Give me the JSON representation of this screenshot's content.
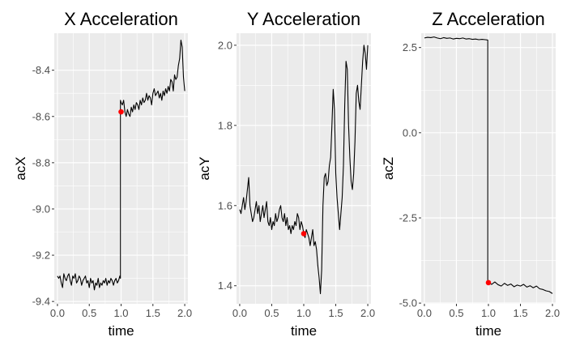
{
  "chart_data": [
    {
      "type": "line",
      "title": "X Acceleration",
      "xlabel": "time",
      "ylabel": "acX",
      "xlim": [
        -0.05,
        2.05
      ],
      "ylim": [
        -9.41,
        -8.24
      ],
      "xticks": [
        0.0,
        0.5,
        1.0,
        1.5,
        2.0
      ],
      "xtick_labels": [
        "0.0",
        "0.5",
        "1.0",
        "1.5",
        "2.0"
      ],
      "yticks": [
        -9.4,
        -9.2,
        -9.0,
        -8.8,
        -8.6,
        -8.4
      ],
      "ytick_labels": [
        "-9.4",
        "-9.2",
        "-9.0",
        "-8.8",
        "-8.6",
        "-8.4"
      ],
      "grid": true,
      "line_color": "#000000",
      "marker": {
        "x": 1.0,
        "y": -8.58,
        "color": "#ff0000"
      },
      "series": [
        {
          "x": [
            0.0,
            0.02,
            0.04,
            0.06,
            0.08,
            0.1,
            0.12,
            0.14,
            0.16,
            0.18,
            0.2,
            0.22,
            0.24,
            0.26,
            0.28,
            0.3,
            0.32,
            0.34,
            0.36,
            0.38,
            0.4,
            0.42,
            0.44,
            0.46,
            0.48,
            0.5,
            0.52,
            0.54,
            0.56,
            0.58,
            0.6,
            0.62,
            0.64,
            0.66,
            0.68,
            0.7,
            0.72,
            0.74,
            0.76,
            0.78,
            0.8,
            0.82,
            0.84,
            0.86,
            0.88,
            0.9,
            0.92,
            0.94,
            0.96,
            0.98,
            0.99,
            0.99,
            1.0,
            1.02,
            1.04,
            1.06,
            1.08,
            1.1,
            1.12,
            1.14,
            1.16,
            1.18,
            1.2,
            1.22,
            1.24,
            1.26,
            1.28,
            1.3,
            1.32,
            1.34,
            1.36,
            1.38,
            1.4,
            1.42,
            1.44,
            1.46,
            1.48,
            1.5,
            1.52,
            1.54,
            1.56,
            1.58,
            1.6,
            1.62,
            1.64,
            1.66,
            1.68,
            1.7,
            1.72,
            1.74,
            1.76,
            1.78,
            1.8,
            1.82,
            1.84,
            1.86,
            1.88,
            1.9,
            1.92,
            1.94,
            1.96,
            1.98,
            2.0
          ],
          "y": [
            -9.29,
            -9.3,
            -9.29,
            -9.32,
            -9.34,
            -9.28,
            -9.3,
            -9.31,
            -9.29,
            -9.28,
            -9.31,
            -9.33,
            -9.29,
            -9.3,
            -9.28,
            -9.32,
            -9.31,
            -9.29,
            -9.3,
            -9.33,
            -9.31,
            -9.3,
            -9.29,
            -9.32,
            -9.31,
            -9.34,
            -9.3,
            -9.32,
            -9.31,
            -9.35,
            -9.32,
            -9.33,
            -9.3,
            -9.34,
            -9.32,
            -9.33,
            -9.31,
            -9.32,
            -9.3,
            -9.33,
            -9.31,
            -9.32,
            -9.3,
            -9.31,
            -9.33,
            -9.31,
            -9.3,
            -9.32,
            -9.31,
            -9.29,
            -9.3,
            -8.53,
            -8.54,
            -8.55,
            -8.53,
            -8.58,
            -8.6,
            -8.57,
            -8.59,
            -8.6,
            -8.56,
            -8.58,
            -8.55,
            -8.57,
            -8.54,
            -8.55,
            -8.57,
            -8.53,
            -8.55,
            -8.52,
            -8.54,
            -8.53,
            -8.5,
            -8.53,
            -8.51,
            -8.52,
            -8.55,
            -8.5,
            -8.48,
            -8.51,
            -8.5,
            -8.49,
            -8.52,
            -8.5,
            -8.53,
            -8.49,
            -8.51,
            -8.48,
            -8.5,
            -8.47,
            -8.49,
            -8.44,
            -8.45,
            -8.49,
            -8.42,
            -8.44,
            -8.43,
            -8.38,
            -8.35,
            -8.27,
            -8.3,
            -8.43,
            -8.49
          ]
        }
      ]
    },
    {
      "type": "line",
      "title": "Y Acceleration",
      "xlabel": "time",
      "ylabel": "acY",
      "xlim": [
        -0.05,
        2.05
      ],
      "ylim": [
        1.355,
        2.03
      ],
      "xticks": [
        0.0,
        0.5,
        1.0,
        1.5,
        2.0
      ],
      "xtick_labels": [
        "0.0",
        "0.5",
        "1.0",
        "1.5",
        "2.0"
      ],
      "yticks": [
        1.4,
        1.6,
        1.8,
        2.0
      ],
      "ytick_labels": [
        "1.4",
        "1.6",
        "1.8",
        "2.0"
      ],
      "grid": true,
      "line_color": "#000000",
      "marker": {
        "x": 1.0,
        "y": 1.53,
        "color": "#ff0000"
      },
      "series": [
        {
          "x": [
            0.0,
            0.02,
            0.04,
            0.06,
            0.08,
            0.1,
            0.12,
            0.14,
            0.16,
            0.18,
            0.2,
            0.22,
            0.24,
            0.26,
            0.28,
            0.3,
            0.32,
            0.34,
            0.36,
            0.38,
            0.4,
            0.42,
            0.44,
            0.46,
            0.48,
            0.5,
            0.52,
            0.54,
            0.56,
            0.58,
            0.6,
            0.62,
            0.64,
            0.66,
            0.68,
            0.7,
            0.72,
            0.74,
            0.76,
            0.78,
            0.8,
            0.82,
            0.84,
            0.86,
            0.88,
            0.9,
            0.92,
            0.94,
            0.96,
            0.98,
            1.0,
            1.02,
            1.04,
            1.06,
            1.08,
            1.1,
            1.12,
            1.14,
            1.16,
            1.18,
            1.2,
            1.22,
            1.24,
            1.26,
            1.28,
            1.3,
            1.32,
            1.34,
            1.36,
            1.38,
            1.4,
            1.42,
            1.44,
            1.46,
            1.48,
            1.5,
            1.52,
            1.54,
            1.56,
            1.58,
            1.6,
            1.62,
            1.64,
            1.66,
            1.68,
            1.7,
            1.72,
            1.74,
            1.76,
            1.78,
            1.8,
            1.82,
            1.84,
            1.86,
            1.88,
            1.9,
            1.92,
            1.94,
            1.96,
            1.98,
            2.0
          ],
          "y": [
            1.59,
            1.58,
            1.6,
            1.62,
            1.59,
            1.61,
            1.64,
            1.67,
            1.6,
            1.58,
            1.56,
            1.57,
            1.59,
            1.61,
            1.58,
            1.6,
            1.56,
            1.58,
            1.6,
            1.57,
            1.59,
            1.61,
            1.56,
            1.55,
            1.57,
            1.54,
            1.56,
            1.55,
            1.58,
            1.56,
            1.57,
            1.59,
            1.6,
            1.57,
            1.56,
            1.58,
            1.55,
            1.57,
            1.54,
            1.55,
            1.53,
            1.55,
            1.54,
            1.56,
            1.55,
            1.58,
            1.57,
            1.54,
            1.56,
            1.55,
            1.53,
            1.52,
            1.54,
            1.53,
            1.52,
            1.5,
            1.52,
            1.54,
            1.5,
            1.51,
            1.49,
            1.45,
            1.42,
            1.38,
            1.44,
            1.6,
            1.67,
            1.68,
            1.65,
            1.66,
            1.7,
            1.72,
            1.8,
            1.89,
            1.84,
            1.68,
            1.62,
            1.58,
            1.54,
            1.58,
            1.62,
            1.7,
            1.85,
            1.96,
            1.94,
            1.8,
            1.72,
            1.66,
            1.64,
            1.68,
            1.76,
            1.88,
            1.9,
            1.86,
            1.84,
            1.9,
            1.96,
            2.0,
            1.98,
            1.94,
            2.0
          ]
        }
      ]
    },
    {
      "type": "line",
      "title": "Z Acceleration",
      "xlabel": "time",
      "ylabel": "acZ",
      "xlim": [
        -0.05,
        2.05
      ],
      "ylim": [
        -5.02,
        2.92
      ],
      "xticks": [
        0.0,
        0.5,
        1.0,
        1.5,
        2.0
      ],
      "xtick_labels": [
        "0.0",
        "0.5",
        "1.0",
        "1.5",
        "2.0"
      ],
      "yticks": [
        -5.0,
        -2.5,
        0.0,
        2.5
      ],
      "ytick_labels": [
        "-5.0",
        "-2.5",
        "0.0",
        "2.5"
      ],
      "grid": true,
      "line_color": "#000000",
      "marker": {
        "x": 1.0,
        "y": -4.4,
        "color": "#ff0000"
      },
      "series": [
        {
          "x": [
            0.0,
            0.05,
            0.1,
            0.15,
            0.2,
            0.25,
            0.3,
            0.35,
            0.4,
            0.45,
            0.5,
            0.55,
            0.6,
            0.65,
            0.7,
            0.75,
            0.8,
            0.85,
            0.9,
            0.95,
            0.99,
            0.99,
            1.0,
            1.05,
            1.1,
            1.15,
            1.2,
            1.25,
            1.3,
            1.35,
            1.4,
            1.45,
            1.5,
            1.55,
            1.6,
            1.65,
            1.7,
            1.75,
            1.8,
            1.85,
            1.9,
            1.95,
            2.0
          ],
          "y": [
            2.78,
            2.8,
            2.79,
            2.81,
            2.78,
            2.76,
            2.79,
            2.77,
            2.78,
            2.75,
            2.77,
            2.76,
            2.78,
            2.75,
            2.76,
            2.74,
            2.75,
            2.73,
            2.74,
            2.73,
            2.72,
            -4.35,
            -4.4,
            -4.45,
            -4.38,
            -4.46,
            -4.5,
            -4.42,
            -4.48,
            -4.44,
            -4.52,
            -4.47,
            -4.5,
            -4.45,
            -4.53,
            -4.49,
            -4.55,
            -4.5,
            -4.58,
            -4.6,
            -4.64,
            -4.66,
            -4.72
          ]
        }
      ]
    }
  ]
}
